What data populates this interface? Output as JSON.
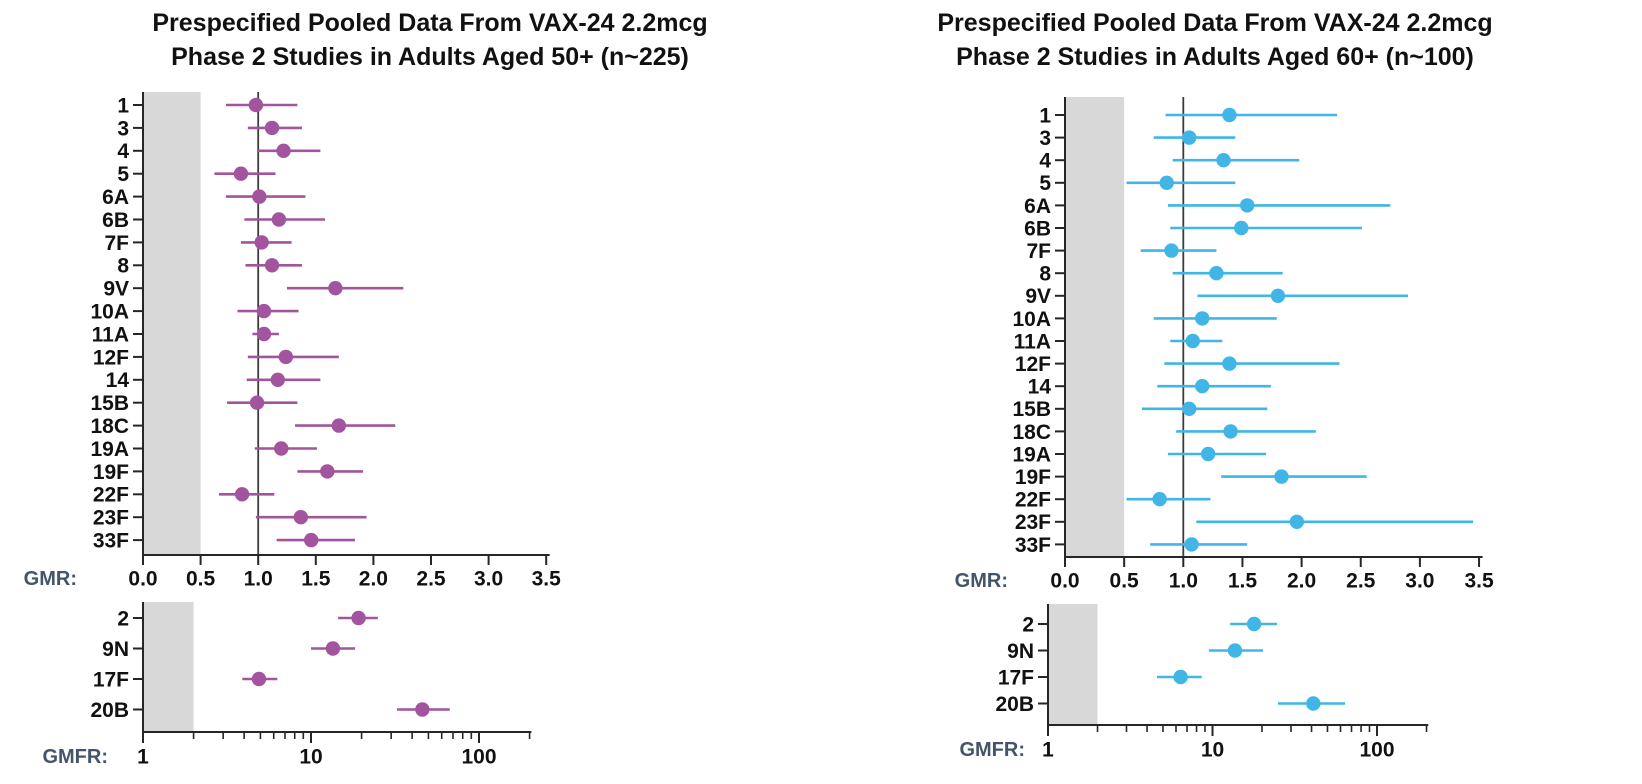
{
  "colors": {
    "shaded_band": "#D8D8D8",
    "reference_line": "#3C3C3C",
    "axis": "#262626",
    "text": "#111111",
    "axis_caption": "#44546A",
    "series_50plus": "#A3549E",
    "series_60plus": "#41B6E6"
  },
  "chart_data": [
    {
      "panel": "adults_50plus",
      "type": "scatter",
      "subtype": "forest-plot",
      "title_line1": "Prespecified Pooled Data From VAX-24 2.2mcg",
      "title_line2": "Phase 2 Studies in Adults Aged 50+ (n~225)",
      "series_color": "#A3549E",
      "gmr": {
        "axis_label": "GMR:",
        "scale": "linear",
        "xlim": [
          0,
          3.5
        ],
        "tick_labels": [
          "0.0",
          "0.5",
          "1.0",
          "1.5",
          "2.0",
          "2.5",
          "3.0",
          "3.5"
        ],
        "shaded_band": [
          0,
          0.5
        ],
        "reference_line": 1.0,
        "points": [
          {
            "label": "1",
            "gmr": 0.98,
            "lo": 0.72,
            "hi": 1.34
          },
          {
            "label": "3",
            "gmr": 1.12,
            "lo": 0.91,
            "hi": 1.38
          },
          {
            "label": "4",
            "gmr": 1.22,
            "lo": 0.99,
            "hi": 1.54
          },
          {
            "label": "5",
            "gmr": 0.85,
            "lo": 0.62,
            "hi": 1.15
          },
          {
            "label": "6A",
            "gmr": 1.01,
            "lo": 0.72,
            "hi": 1.41
          },
          {
            "label": "6B",
            "gmr": 1.18,
            "lo": 0.88,
            "hi": 1.58
          },
          {
            "label": "7F",
            "gmr": 1.03,
            "lo": 0.85,
            "hi": 1.29
          },
          {
            "label": "8",
            "gmr": 1.12,
            "lo": 0.89,
            "hi": 1.38
          },
          {
            "label": "9V",
            "gmr": 1.67,
            "lo": 1.25,
            "hi": 2.26
          },
          {
            "label": "10A",
            "gmr": 1.05,
            "lo": 0.82,
            "hi": 1.35
          },
          {
            "label": "11A",
            "gmr": 1.05,
            "lo": 0.95,
            "hi": 1.18
          },
          {
            "label": "12F",
            "gmr": 1.24,
            "lo": 0.91,
            "hi": 1.7
          },
          {
            "label": "14",
            "gmr": 1.17,
            "lo": 0.9,
            "hi": 1.54
          },
          {
            "label": "15B",
            "gmr": 0.99,
            "lo": 0.73,
            "hi": 1.34
          },
          {
            "label": "18C",
            "gmr": 1.7,
            "lo": 1.32,
            "hi": 2.19
          },
          {
            "label": "19A",
            "gmr": 1.2,
            "lo": 0.97,
            "hi": 1.51
          },
          {
            "label": "19F",
            "gmr": 1.6,
            "lo": 1.34,
            "hi": 1.91
          },
          {
            "label": "22F",
            "gmr": 0.86,
            "lo": 0.66,
            "hi": 1.14
          },
          {
            "label": "23F",
            "gmr": 1.37,
            "lo": 0.98,
            "hi": 1.94
          },
          {
            "label": "33F",
            "gmr": 1.46,
            "lo": 1.16,
            "hi": 1.84
          }
        ]
      },
      "gmfr": {
        "axis_label": "GMFR:",
        "scale": "log",
        "xlim": [
          1,
          200
        ],
        "tick_labels": [
          "1",
          "10",
          "100"
        ],
        "shaded_band": [
          1,
          2
        ],
        "points": [
          {
            "label": "2",
            "gmfr": 19.2,
            "lo": 14.5,
            "hi": 25.0
          },
          {
            "label": "9N",
            "gmfr": 13.5,
            "lo": 10.0,
            "hi": 18.3
          },
          {
            "label": "17F",
            "gmfr": 4.9,
            "lo": 3.9,
            "hi": 6.3
          },
          {
            "label": "20B",
            "gmfr": 46.0,
            "lo": 32.5,
            "hi": 67.0
          }
        ]
      }
    },
    {
      "panel": "adults_60plus",
      "type": "scatter",
      "subtype": "forest-plot",
      "title_line1": "Prespecified Pooled Data From VAX-24 2.2mcg",
      "title_line2": "Phase 2 Studies in Adults Aged 60+ (n~100)",
      "series_color": "#41B6E6",
      "gmr": {
        "axis_label": "GMR:",
        "scale": "linear",
        "xlim": [
          0,
          3.5
        ],
        "tick_labels": [
          "0.0",
          "0.5",
          "1.0",
          "1.5",
          "2.0",
          "2.5",
          "3.0",
          "3.5"
        ],
        "shaded_band": [
          0,
          0.5
        ],
        "reference_line": 1.0,
        "points": [
          {
            "label": "1",
            "gmr": 1.39,
            "lo": 0.85,
            "hi": 2.3
          },
          {
            "label": "3",
            "gmr": 1.05,
            "lo": 0.75,
            "hi": 1.44
          },
          {
            "label": "4",
            "gmr": 1.34,
            "lo": 0.91,
            "hi": 1.98
          },
          {
            "label": "5",
            "gmr": 0.86,
            "lo": 0.52,
            "hi": 1.44
          },
          {
            "label": "6A",
            "gmr": 1.54,
            "lo": 0.87,
            "hi": 2.75
          },
          {
            "label": "6B",
            "gmr": 1.49,
            "lo": 0.89,
            "hi": 2.51
          },
          {
            "label": "7F",
            "gmr": 0.9,
            "lo": 0.64,
            "hi": 1.28
          },
          {
            "label": "8",
            "gmr": 1.28,
            "lo": 0.91,
            "hi": 1.84
          },
          {
            "label": "9V",
            "gmr": 1.8,
            "lo": 1.12,
            "hi": 2.9
          },
          {
            "label": "10A",
            "gmr": 1.16,
            "lo": 0.75,
            "hi": 1.79
          },
          {
            "label": "11A",
            "gmr": 1.08,
            "lo": 0.89,
            "hi": 1.33
          },
          {
            "label": "12F",
            "gmr": 1.39,
            "lo": 0.84,
            "hi": 2.32
          },
          {
            "label": "14",
            "gmr": 1.16,
            "lo": 0.78,
            "hi": 1.74
          },
          {
            "label": "15B",
            "gmr": 1.05,
            "lo": 0.65,
            "hi": 1.71
          },
          {
            "label": "18C",
            "gmr": 1.4,
            "lo": 0.94,
            "hi": 2.12
          },
          {
            "label": "19A",
            "gmr": 1.21,
            "lo": 0.87,
            "hi": 1.7
          },
          {
            "label": "19F",
            "gmr": 1.83,
            "lo": 1.32,
            "hi": 2.55
          },
          {
            "label": "22F",
            "gmr": 0.8,
            "lo": 0.52,
            "hi": 1.23
          },
          {
            "label": "23F",
            "gmr": 1.96,
            "lo": 1.11,
            "hi": 3.45
          },
          {
            "label": "33F",
            "gmr": 1.07,
            "lo": 0.72,
            "hi": 1.54
          }
        ]
      },
      "gmfr": {
        "axis_label": "GMFR:",
        "scale": "log",
        "xlim": [
          1,
          200
        ],
        "tick_labels": [
          "1",
          "10",
          "100"
        ],
        "shaded_band": [
          1,
          2
        ],
        "points": [
          {
            "label": "2",
            "gmfr": 17.9,
            "lo": 12.8,
            "hi": 24.7
          },
          {
            "label": "9N",
            "gmfr": 13.7,
            "lo": 9.5,
            "hi": 20.3
          },
          {
            "label": "17F",
            "gmfr": 6.4,
            "lo": 4.6,
            "hi": 8.6
          },
          {
            "label": "20B",
            "gmfr": 41.0,
            "lo": 25.0,
            "hi": 64.0
          }
        ]
      }
    }
  ]
}
